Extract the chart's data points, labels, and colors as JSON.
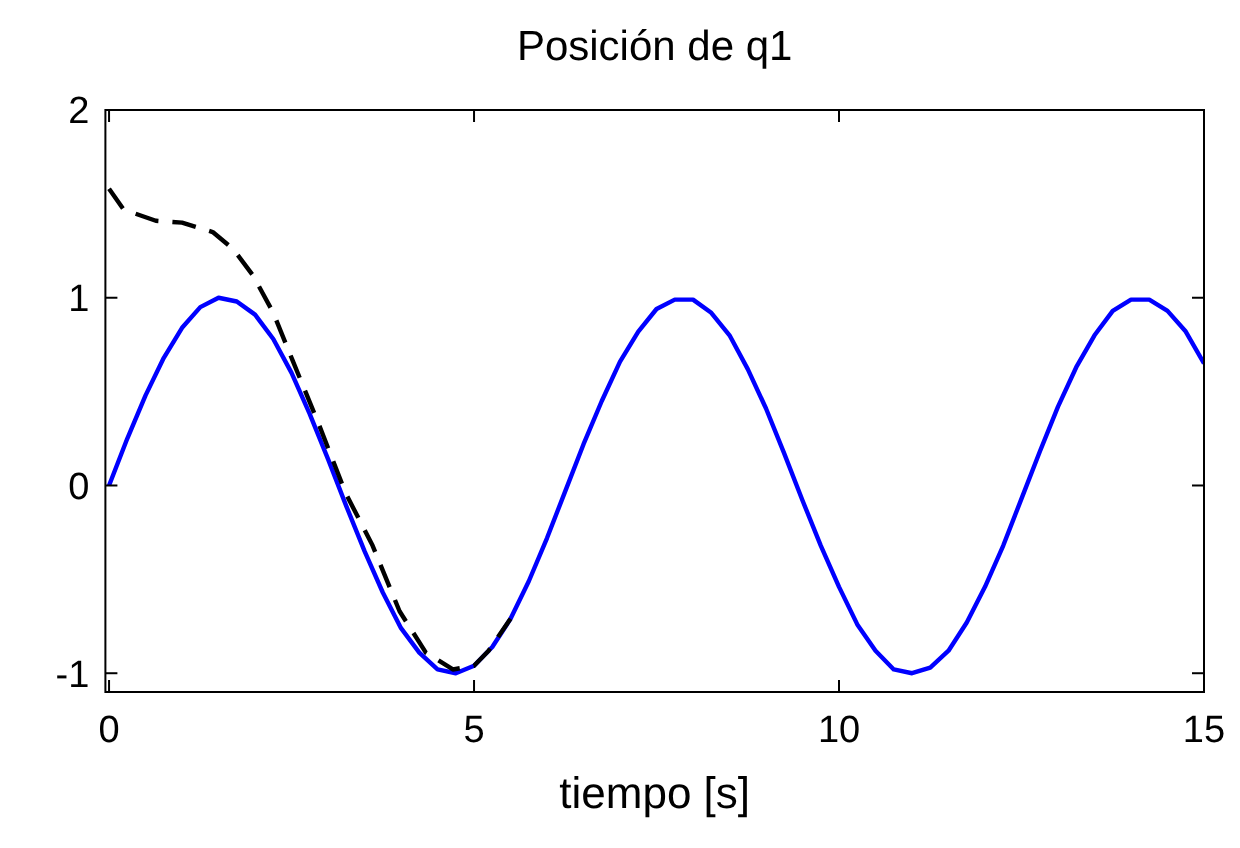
{
  "chart_data": {
    "type": "line",
    "title": "Posición de q1",
    "xlabel": "tiempo [s]",
    "xlim": [
      -0.05,
      15
    ],
    "ylim": [
      -1.1,
      2
    ],
    "xticks": [
      0,
      5,
      10,
      15
    ],
    "yticks": [
      -1,
      0,
      1,
      2
    ],
    "grid": false,
    "marker": "none",
    "series": [
      {
        "color": "#0000ff",
        "line_style": "solid",
        "x": [
          0,
          0.25,
          0.5,
          0.75,
          1,
          1.25,
          1.5,
          1.75,
          2,
          2.25,
          2.5,
          2.75,
          3,
          3.25,
          3.5,
          3.75,
          4,
          4.25,
          4.5,
          4.75,
          5,
          5.25,
          5.5,
          5.75,
          6,
          6.25,
          6.5,
          6.75,
          7,
          7.25,
          7.5,
          7.75,
          8,
          8.25,
          8.5,
          8.75,
          9,
          9.25,
          9.5,
          9.75,
          10,
          10.25,
          10.5,
          10.75,
          11,
          11.25,
          11.5,
          11.75,
          12,
          12.25,
          12.5,
          12.75,
          13,
          13.25,
          13.5,
          13.75,
          14,
          14.25,
          14.5,
          14.75,
          15
        ],
        "values": [
          0,
          0.25,
          0.48,
          0.68,
          0.84,
          0.95,
          1.0,
          0.98,
          0.91,
          0.78,
          0.6,
          0.38,
          0.14,
          -0.11,
          -0.35,
          -0.57,
          -0.76,
          -0.89,
          -0.98,
          -1.0,
          -0.96,
          -0.86,
          -0.71,
          -0.51,
          -0.28,
          -0.03,
          0.22,
          0.45,
          0.66,
          0.82,
          0.94,
          0.99,
          0.99,
          0.92,
          0.8,
          0.62,
          0.41,
          0.17,
          -0.08,
          -0.32,
          -0.54,
          -0.74,
          -0.88,
          -0.98,
          -1.0,
          -0.97,
          -0.88,
          -0.73,
          -0.54,
          -0.32,
          -0.07,
          0.18,
          0.42,
          0.63,
          0.8,
          0.93,
          0.99,
          0.99,
          0.93,
          0.82,
          0.65
        ]
      },
      {
        "color": "#000000",
        "line_style": "dashed",
        "x": [
          0,
          0.2,
          0.64,
          1.0,
          1.42,
          1.7,
          1.97,
          2.25,
          2.51,
          2.88,
          3.24,
          3.61,
          3.98,
          4.34,
          4.71,
          5.0,
          5.2,
          5.5
        ],
        "values": [
          1.58,
          1.47,
          1.41,
          1.4,
          1.35,
          1.26,
          1.12,
          0.92,
          0.67,
          0.32,
          -0.04,
          -0.32,
          -0.67,
          -0.89,
          -0.98,
          -0.96,
          -0.88,
          -0.71
        ]
      }
    ]
  }
}
